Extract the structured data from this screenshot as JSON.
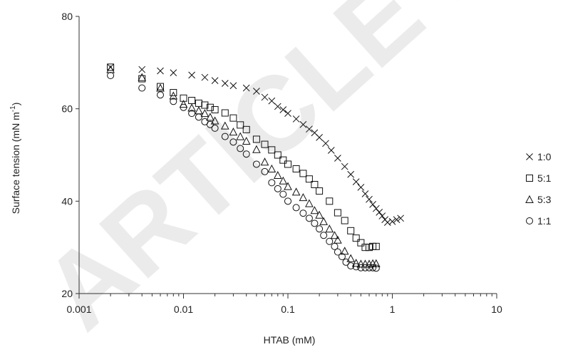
{
  "watermark": "ARTICLE IN PRESS",
  "chart_data": {
    "type": "scatter",
    "title": "",
    "xlabel": "HTAB (mM)",
    "ylabel": "Surface tension (mN m",
    "ylabel_sup": "-1",
    "ylabel_end": ")",
    "xscale": "log",
    "xlim": [
      0.001,
      10
    ],
    "ylim": [
      20,
      80
    ],
    "x_ticks": [
      0.001,
      0.01,
      0.1,
      1,
      10
    ],
    "x_tick_labels": [
      "0.001",
      "0.01",
      "0.1",
      "1",
      "10"
    ],
    "y_ticks": [
      20,
      40,
      60,
      80
    ],
    "y_tick_labels": [
      "20",
      "40",
      "60",
      "80"
    ],
    "grid": false,
    "legend_position": "right",
    "series": [
      {
        "name": "1:0",
        "marker": "x",
        "x": [
          0.002,
          0.004,
          0.006,
          0.008,
          0.012,
          0.016,
          0.02,
          0.025,
          0.03,
          0.04,
          0.05,
          0.06,
          0.07,
          0.08,
          0.09,
          0.1,
          0.12,
          0.14,
          0.16,
          0.18,
          0.2,
          0.23,
          0.26,
          0.3,
          0.35,
          0.4,
          0.45,
          0.5,
          0.55,
          0.6,
          0.65,
          0.7,
          0.75,
          0.8,
          0.85,
          0.9,
          1.0,
          1.1,
          1.2
        ],
        "y": [
          69.0,
          68.5,
          68.2,
          67.8,
          67.3,
          66.8,
          66.1,
          65.5,
          65.0,
          64.5,
          63.8,
          62.5,
          61.7,
          60.5,
          59.8,
          59.0,
          57.8,
          56.6,
          55.6,
          54.8,
          53.8,
          52.5,
          51.0,
          49.3,
          47.5,
          45.8,
          44.2,
          43.0,
          41.6,
          40.4,
          39.3,
          38.4,
          37.6,
          36.8,
          36.0,
          35.4,
          35.6,
          36.0,
          36.3
        ]
      },
      {
        "name": "5:1",
        "marker": "square",
        "x": [
          0.002,
          0.004,
          0.006,
          0.008,
          0.01,
          0.012,
          0.014,
          0.016,
          0.018,
          0.02,
          0.025,
          0.03,
          0.035,
          0.04,
          0.05,
          0.06,
          0.07,
          0.08,
          0.09,
          0.1,
          0.12,
          0.14,
          0.16,
          0.18,
          0.2,
          0.25,
          0.3,
          0.35,
          0.4,
          0.45,
          0.5,
          0.55,
          0.6,
          0.65,
          0.7
        ],
        "y": [
          69.0,
          66.5,
          64.8,
          63.5,
          62.3,
          61.8,
          61.2,
          60.8,
          60.3,
          59.8,
          59.1,
          58.0,
          56.5,
          55.5,
          53.4,
          52.3,
          51.1,
          50.0,
          48.9,
          48.0,
          47.0,
          46.0,
          44.8,
          43.6,
          42.2,
          40.0,
          37.5,
          35.8,
          33.6,
          32.0,
          31.0,
          30.0,
          30.0,
          30.2,
          30.2
        ]
      },
      {
        "name": "5:3",
        "marker": "triangle",
        "x": [
          0.002,
          0.004,
          0.006,
          0.008,
          0.01,
          0.012,
          0.014,
          0.016,
          0.018,
          0.02,
          0.025,
          0.03,
          0.035,
          0.04,
          0.05,
          0.06,
          0.07,
          0.08,
          0.09,
          0.1,
          0.12,
          0.14,
          0.16,
          0.18,
          0.2,
          0.22,
          0.25,
          0.28,
          0.3,
          0.35,
          0.4,
          0.45,
          0.5,
          0.55,
          0.6,
          0.65,
          0.7
        ],
        "y": [
          68.5,
          66.8,
          64.5,
          62.8,
          61.0,
          60.2,
          59.6,
          59.0,
          58.2,
          57.4,
          56.3,
          55.0,
          54.0,
          53.0,
          51.2,
          48.5,
          47.0,
          45.6,
          44.4,
          43.2,
          42.0,
          40.8,
          39.5,
          38.0,
          37.0,
          35.6,
          34.0,
          32.6,
          31.6,
          29.2,
          27.6,
          26.6,
          26.4,
          26.4,
          26.4,
          26.5,
          26.5
        ]
      },
      {
        "name": "1:1",
        "marker": "circle",
        "x": [
          0.002,
          0.004,
          0.006,
          0.008,
          0.01,
          0.012,
          0.014,
          0.016,
          0.018,
          0.02,
          0.025,
          0.03,
          0.035,
          0.04,
          0.05,
          0.06,
          0.07,
          0.08,
          0.09,
          0.1,
          0.12,
          0.14,
          0.16,
          0.18,
          0.2,
          0.22,
          0.25,
          0.28,
          0.3,
          0.33,
          0.36,
          0.4,
          0.45,
          0.5,
          0.55,
          0.6,
          0.65,
          0.7
        ],
        "y": [
          67.2,
          64.5,
          63.0,
          61.6,
          60.3,
          59.0,
          58.2,
          57.2,
          56.6,
          55.8,
          54.0,
          52.8,
          51.4,
          50.2,
          48.0,
          46.4,
          44.0,
          42.7,
          41.5,
          40.0,
          38.6,
          37.4,
          36.3,
          35.2,
          34.0,
          32.6,
          31.3,
          30.2,
          29.0,
          28.0,
          26.8,
          26.0,
          25.8,
          25.6,
          25.6,
          25.6,
          25.6,
          25.5
        ]
      }
    ]
  }
}
